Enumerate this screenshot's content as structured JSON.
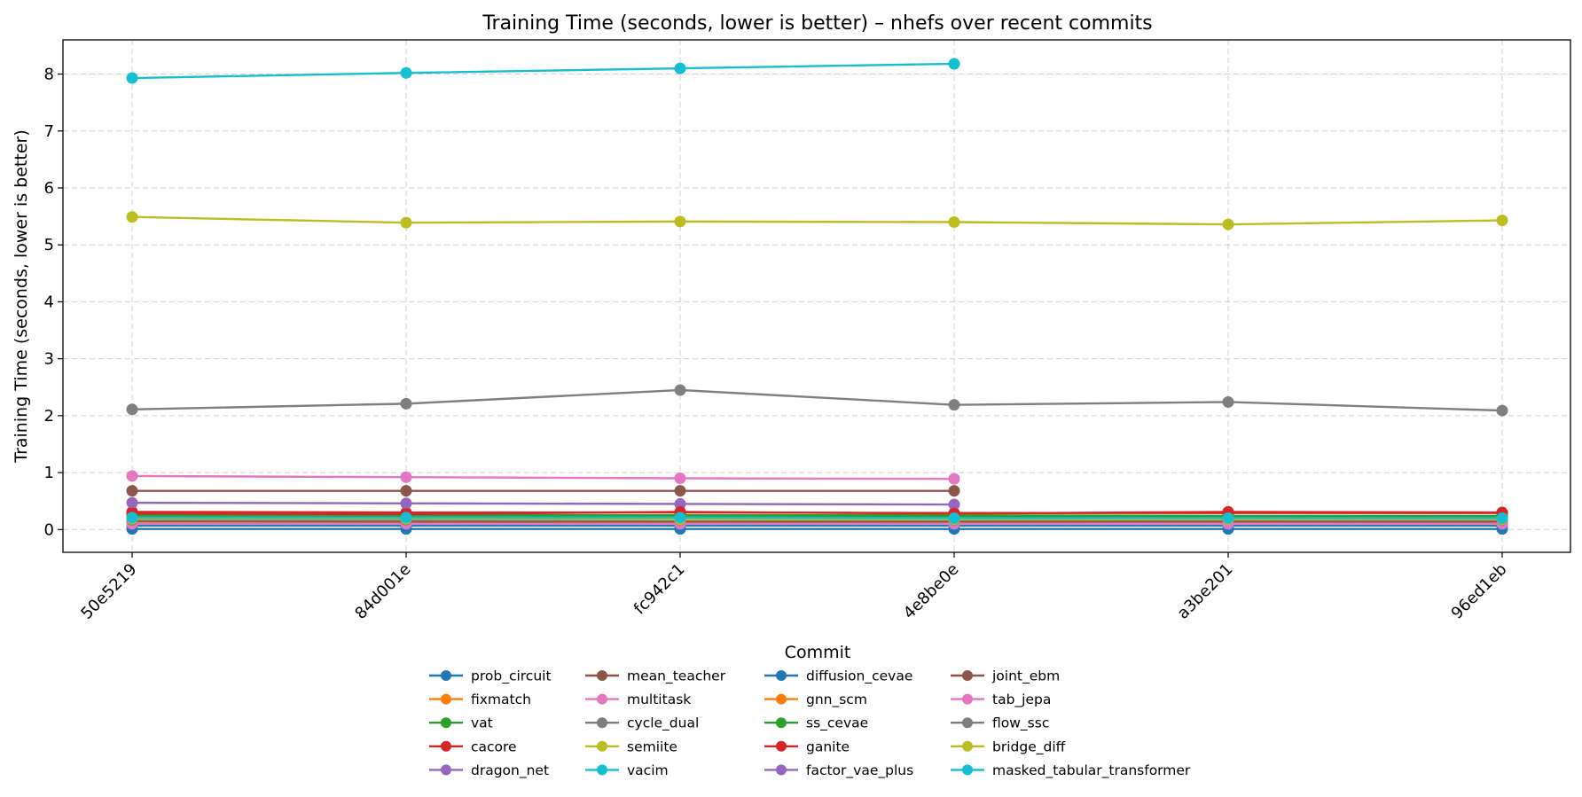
{
  "chart_data": {
    "type": "line",
    "title": "Training Time (seconds, lower is better) – nhefs over recent commits",
    "xlabel": "Commit",
    "ylabel": "Training Time (seconds, lower is better)",
    "categories": [
      "50e5219",
      "84d001e",
      "fc942c1",
      "4e8be0e",
      "a3be201",
      "96ed1eb"
    ],
    "ylim": [
      -0.4,
      8.6
    ],
    "yticks": [
      0,
      1,
      2,
      3,
      4,
      5,
      6,
      7,
      8
    ],
    "grid": true,
    "legend_position": "bottom-center",
    "legend_title": "Commit",
    "series": [
      {
        "name": "prob_circuit",
        "color": "#1f77b4",
        "values": [
          0.01,
          0.01,
          0.01,
          0.01,
          0.01,
          0.01
        ]
      },
      {
        "name": "fixmatch",
        "color": "#ff7f0e",
        "values": [
          0.13,
          0.12,
          0.12,
          0.12,
          0.11,
          0.11
        ]
      },
      {
        "name": "vat",
        "color": "#2ca02c",
        "values": [
          0.23,
          0.22,
          0.22,
          0.22,
          0.22,
          0.22
        ]
      },
      {
        "name": "cacore",
        "color": "#d62728",
        "values": [
          0.31,
          0.3,
          0.3,
          0.29,
          0.29,
          0.29
        ]
      },
      {
        "name": "dragon_net",
        "color": "#9467bd",
        "values": [
          0.47,
          0.46,
          0.45,
          0.44,
          null,
          null
        ]
      },
      {
        "name": "mean_teacher",
        "color": "#8c564b",
        "values": [
          0.68,
          0.68,
          0.68,
          0.68,
          null,
          null
        ]
      },
      {
        "name": "multitask",
        "color": "#e377c2",
        "values": [
          0.94,
          0.92,
          0.9,
          0.89,
          null,
          null
        ]
      },
      {
        "name": "cycle_dual",
        "color": "#7f7f7f",
        "values": [
          2.11,
          2.21,
          2.45,
          2.19,
          2.24,
          2.09
        ]
      },
      {
        "name": "semiite",
        "color": "#bcbd22",
        "values": [
          5.49,
          5.39,
          5.41,
          5.4,
          5.36,
          5.43
        ]
      },
      {
        "name": "vacim",
        "color": "#17becf",
        "values": [
          7.93,
          8.02,
          8.1,
          8.18,
          null,
          null
        ]
      },
      {
        "name": "diffusion_cevae",
        "color": "#1f77b4",
        "values": [
          0.07,
          0.07,
          0.07,
          0.07,
          0.07,
          0.07
        ]
      },
      {
        "name": "gnn_scm",
        "color": "#ff7f0e",
        "values": [
          0.16,
          0.15,
          0.15,
          0.15,
          0.14,
          0.14
        ]
      },
      {
        "name": "ss_cevae",
        "color": "#2ca02c",
        "values": [
          0.26,
          0.25,
          0.25,
          0.25,
          0.24,
          0.24
        ]
      },
      {
        "name": "ganite",
        "color": "#d62728",
        "values": [
          0.28,
          0.27,
          0.31,
          0.28,
          0.31,
          0.3
        ]
      },
      {
        "name": "factor_vae_plus",
        "color": "#9467bd",
        "values": [
          0.2,
          0.19,
          0.19,
          0.18,
          0.18,
          0.18
        ]
      },
      {
        "name": "joint_ebm",
        "color": "#8c564b",
        "values": [
          0.15,
          0.14,
          0.14,
          0.14,
          0.14,
          0.14
        ]
      },
      {
        "name": "tab_jepa",
        "color": "#e377c2",
        "values": [
          0.1,
          0.1,
          0.1,
          0.1,
          0.1,
          0.1
        ]
      },
      {
        "name": "flow_ssc",
        "color": "#7f7f7f",
        "values": [
          0.17,
          0.17,
          0.17,
          0.17,
          0.18,
          0.17
        ]
      },
      {
        "name": "bridge_diff",
        "color": "#bcbd22",
        "values": [
          0.19,
          0.19,
          0.18,
          0.18,
          0.18,
          0.18
        ]
      },
      {
        "name": "masked_tabular_transformer",
        "color": "#17becf",
        "values": [
          0.21,
          0.21,
          0.21,
          0.2,
          0.2,
          0.2
        ]
      }
    ]
  }
}
